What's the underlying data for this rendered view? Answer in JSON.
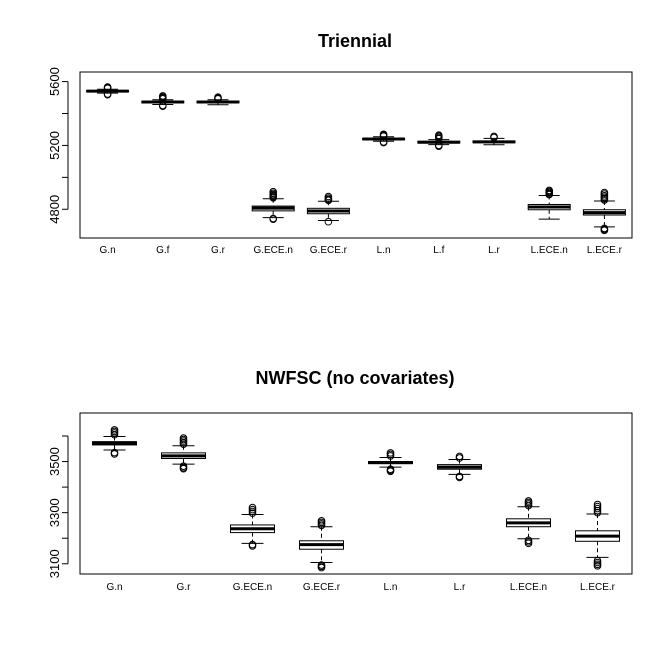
{
  "chart_data": [
    {
      "type": "boxplot",
      "title": "Triennial",
      "ylim": [
        4620,
        5660
      ],
      "yticks": [
        4800,
        5000,
        5200,
        5400,
        5600
      ],
      "ytick_labels": [
        "4800",
        "",
        "5200",
        "",
        "5600"
      ],
      "categories": [
        "G.n",
        "G.f",
        "G.r",
        "G.ECE.n",
        "G.ECE.r",
        "L.n",
        "L.f",
        "L.r",
        "L.ECE.n",
        "L.ECE.r"
      ],
      "boxes": [
        {
          "q1": 5535,
          "median": 5540,
          "q3": 5544,
          "lo": 5528,
          "hi": 5552,
          "outliers": [
            5518,
            5522,
            5558,
            5562,
            5566
          ]
        },
        {
          "q1": 5466,
          "median": 5472,
          "q3": 5477,
          "lo": 5456,
          "hi": 5486,
          "outliers": [
            5446,
            5450,
            5492,
            5498,
            5504,
            5510
          ]
        },
        {
          "q1": 5467,
          "median": 5472,
          "q3": 5478,
          "lo": 5455,
          "hi": 5486,
          "outliers": [
            5492,
            5496,
            5502
          ]
        },
        {
          "q1": 4790,
          "median": 4807,
          "q3": 4820,
          "lo": 4748,
          "hi": 4866,
          "outliers": [
            4738,
            4742,
            4872,
            4878,
            4885,
            4892,
            4900,
            4910
          ]
        },
        {
          "q1": 4772,
          "median": 4789,
          "q3": 4806,
          "lo": 4730,
          "hi": 4850,
          "outliers": [
            4722,
            4856,
            4862,
            4870,
            4880
          ]
        },
        {
          "q1": 5235,
          "median": 5240,
          "q3": 5244,
          "lo": 5226,
          "hi": 5254,
          "outliers": [
            5218,
            5222,
            5258,
            5264,
            5270
          ]
        },
        {
          "q1": 5215,
          "median": 5220,
          "q3": 5226,
          "lo": 5205,
          "hi": 5236,
          "outliers": [
            5195,
            5200,
            5242,
            5250,
            5258,
            5264
          ]
        },
        {
          "q1": 5217,
          "median": 5222,
          "q3": 5228,
          "lo": 5204,
          "hi": 5244,
          "outliers": [
            5250,
            5256
          ]
        },
        {
          "q1": 4797,
          "median": 4814,
          "q3": 4830,
          "lo": 4738,
          "hi": 4886,
          "outliers": [
            4892,
            4898,
            4905,
            4912,
            4918
          ]
        },
        {
          "q1": 4764,
          "median": 4779,
          "q3": 4797,
          "lo": 4690,
          "hi": 4852,
          "outliers": [
            4668,
            4674,
            4680,
            4858,
            4866,
            4875,
            4884,
            4895,
            4905
          ]
        }
      ]
    },
    {
      "type": "boxplot",
      "title": "NWFSC (no covariates)",
      "ylim": [
        3060,
        3690
      ],
      "yticks": [
        3100,
        3200,
        3300,
        3400,
        3500,
        3600
      ],
      "ytick_labels": [
        "3100",
        "",
        "3300",
        "",
        "3500",
        ""
      ],
      "categories": [
        "G.n",
        "G.r",
        "G.ECE.n",
        "G.ECE.r",
        "L.n",
        "L.r",
        "L.ECE.n",
        "L.ECE.r"
      ],
      "boxes": [
        {
          "q1": 3565,
          "median": 3572,
          "q3": 3578,
          "lo": 3545,
          "hi": 3598,
          "outliers": [
            3530,
            3535,
            3605,
            3612,
            3618,
            3624
          ]
        },
        {
          "q1": 3512,
          "median": 3522,
          "q3": 3534,
          "lo": 3490,
          "hi": 3562,
          "outliers": [
            3472,
            3476,
            3482,
            3568,
            3574,
            3580,
            3586,
            3592
          ]
        },
        {
          "q1": 3222,
          "median": 3237,
          "q3": 3252,
          "lo": 3180,
          "hi": 3293,
          "outliers": [
            3170,
            3175,
            3298,
            3305,
            3312,
            3320
          ]
        },
        {
          "q1": 3157,
          "median": 3175,
          "q3": 3190,
          "lo": 3105,
          "hi": 3245,
          "outliers": [
            3085,
            3090,
            3095,
            3250,
            3256,
            3262,
            3268
          ]
        },
        {
          "q1": 3492,
          "median": 3496,
          "q3": 3500,
          "lo": 3478,
          "hi": 3516,
          "outliers": [
            3462,
            3466,
            3470,
            3522,
            3528,
            3534
          ]
        },
        {
          "q1": 3470,
          "median": 3478,
          "q3": 3488,
          "lo": 3450,
          "hi": 3508,
          "outliers": [
            3438,
            3442,
            3514,
            3520
          ]
        },
        {
          "q1": 3245,
          "median": 3260,
          "q3": 3276,
          "lo": 3198,
          "hi": 3323,
          "outliers": [
            3180,
            3186,
            3192,
            3328,
            3334,
            3340,
            3346
          ]
        },
        {
          "q1": 3188,
          "median": 3208,
          "q3": 3229,
          "lo": 3125,
          "hi": 3295,
          "outliers": [
            3092,
            3098,
            3105,
            3112,
            3300,
            3308,
            3316,
            3324,
            3332
          ]
        }
      ]
    }
  ]
}
